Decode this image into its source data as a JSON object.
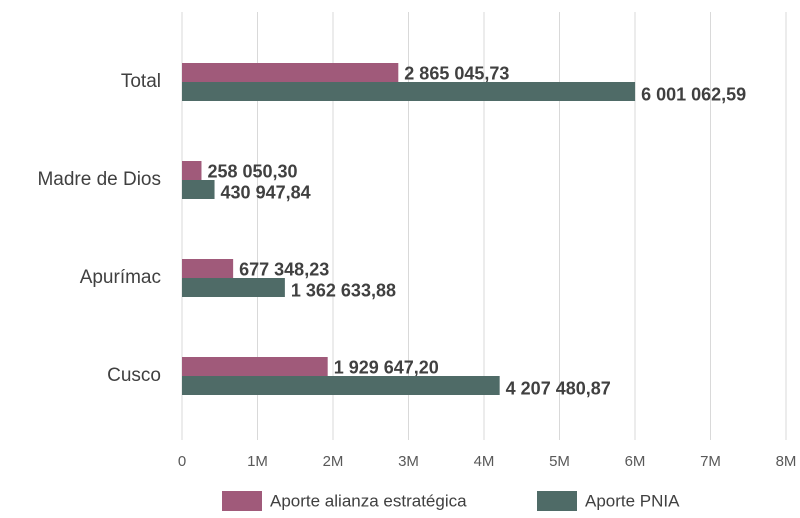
{
  "chart_data": {
    "type": "hbar",
    "categories": [
      "Total",
      "Madre de Dios",
      "Apurímac",
      "Cusco"
    ],
    "series": [
      {
        "name": "Aporte alianza estratégica",
        "color": "#a05a7a",
        "values": [
          2865045.73,
          258050.3,
          677348.23,
          1929647.2
        ],
        "value_labels": [
          "2 865 045,73",
          "258 050,30",
          "677 348,23",
          "1 929 647,20"
        ]
      },
      {
        "name": "Aporte PNIA",
        "color": "#4f6b67",
        "values": [
          6001062.59,
          430947.84,
          1362633.88,
          4207480.87
        ],
        "value_labels": [
          "6 001 062,59",
          "430 947,84",
          "1 362 633,88",
          "4 207 480,87"
        ]
      }
    ],
    "xlim": [
      0,
      8000000
    ],
    "xticks": [
      0,
      {
        "value": 1000000,
        "label": "1M"
      },
      {
        "value": 2000000,
        "label": "2M"
      },
      {
        "value": 3000000,
        "label": "3M"
      },
      {
        "value": 4000000,
        "label": "4M"
      },
      {
        "value": 5000000,
        "label": "5M"
      },
      {
        "value": 6000000,
        "label": "6M"
      },
      {
        "value": 7000000,
        "label": "7M"
      },
      {
        "value": 8000000,
        "label": "8M"
      }
    ],
    "grid": true
  }
}
